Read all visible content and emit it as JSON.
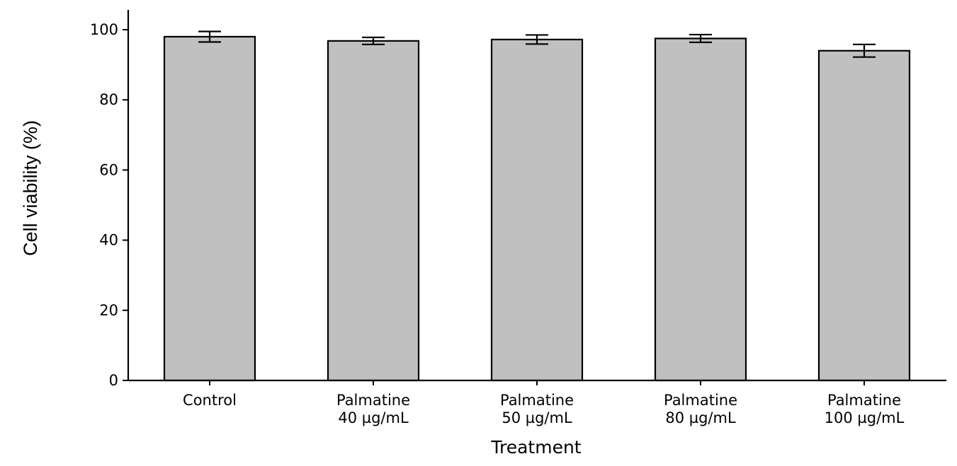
{
  "chart_data": {
    "type": "bar",
    "title": "",
    "xlabel": "Treatment",
    "ylabel": "Cell viability (%)",
    "categories": [
      [
        "Control"
      ],
      [
        "Palmatine",
        "40 µg/mL"
      ],
      [
        "Palmatine",
        "50 µg/mL"
      ],
      [
        "Palmatine",
        "80 µg/mL"
      ],
      [
        "Palmatine",
        "100 µg/mL"
      ]
    ],
    "values": [
      98.0,
      96.8,
      97.2,
      97.5,
      94.0
    ],
    "errors": [
      1.5,
      1.0,
      1.3,
      1.1,
      1.8
    ],
    "ylim": [
      0,
      105
    ],
    "yticks": [
      0,
      20,
      40,
      60,
      80,
      100
    ],
    "grid": false,
    "colors": {
      "bar_fill": "#c0c0c0",
      "bar_edge": "#000000",
      "error_bar": "#000000",
      "axis": "#000000"
    }
  }
}
